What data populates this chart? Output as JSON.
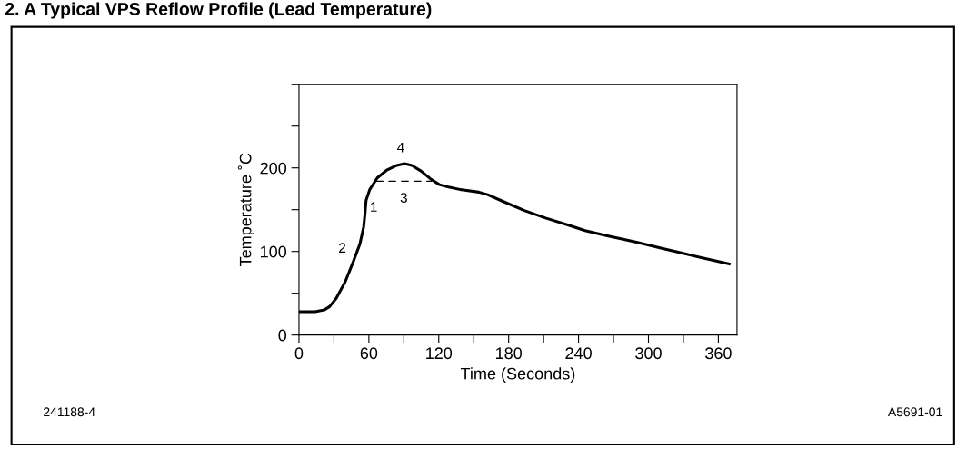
{
  "chart_data": {
    "type": "line",
    "title": "2. A Typical VPS Reflow Profile (Lead Temperature)",
    "xlabel": "Time (Seconds)",
    "ylabel": "Temperature ˚C",
    "series": [
      {
        "color": "#000000",
        "line_style": "solid",
        "x": [
          0,
          13.8,
          21.6,
          26.3,
          32,
          39.8,
          46.4,
          52.3,
          55.5,
          56.8,
          57.6,
          60.7,
          67.2,
          75,
          84,
          90.6,
          97,
          105,
          112.8,
          120.6,
          128.4,
          138.8,
          154.4,
          162,
          175,
          193.5,
          211.7,
          232.6,
          245.6,
          263.8,
          289.8,
          310.7,
          329,
          347,
          369.3
        ],
        "values": [
          28,
          28,
          30,
          34,
          44,
          64,
          87,
          109,
          129,
          147,
          161,
          174,
          188,
          197,
          203,
          205,
          203,
          196,
          187,
          180,
          177,
          174,
          171,
          168,
          160,
          149,
          140,
          131,
          125,
          119,
          111,
          104,
          98,
          92,
          85
        ]
      },
      {
        "color": "#000000",
        "line_style": "dashed",
        "x": [
          66,
          90,
          114
        ],
        "values": [
          184,
          184,
          184
        ]
      }
    ],
    "annotations": [
      {
        "text": "1",
        "x": 57.6,
        "y": 161
      },
      {
        "text": "2",
        "x": 52.3,
        "y": 109
      },
      {
        "text": "3",
        "x": 90,
        "y": 184
      },
      {
        "text": "4",
        "x": 90.6,
        "y": 205
      },
      "241188-4",
      "A5691-01"
    ],
    "xlim": [
      0,
      376
    ],
    "ylim": [
      0,
      300
    ],
    "xticks": [
      0,
      {
        "value": 30,
        "label": null
      },
      60,
      {
        "value": 90,
        "label": null
      },
      120,
      {
        "value": 150,
        "label": null
      },
      180,
      {
        "value": 210,
        "label": null
      },
      240,
      {
        "value": 270,
        "label": null
      },
      300,
      {
        "value": 330,
        "label": null
      },
      360
    ],
    "yticks": [
      0,
      {
        "value": 50,
        "label": null
      },
      100,
      {
        "value": 150,
        "label": null
      },
      200,
      {
        "value": 250,
        "label": null
      },
      {
        "value": 300,
        "label": null
      }
    ],
    "grid": false,
    "legend": false
  }
}
